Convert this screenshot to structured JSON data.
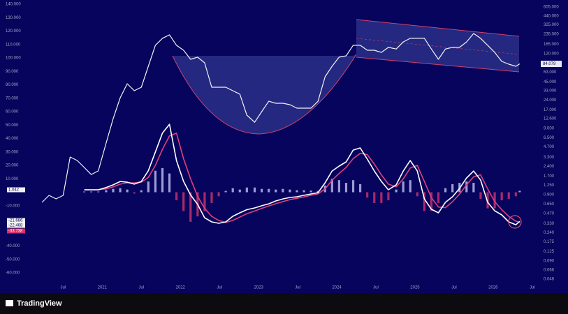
{
  "chart_data": {
    "type": "line",
    "xlim": [
      2020.05,
      2026.6
    ],
    "xticks": [
      {
        "value": 2020.5,
        "label": "Jul"
      },
      2021,
      {
        "value": 2021.5,
        "label": "Jul"
      },
      2022,
      {
        "value": 2022.5,
        "label": "Jul"
      },
      2023,
      {
        "value": 2023.5,
        "label": "Jul"
      },
      2024,
      {
        "value": 2024.5,
        "label": "Jul"
      },
      2025,
      {
        "value": 2025.5,
        "label": "Jul"
      },
      2026,
      {
        "value": 2026.5,
        "label": "Jul"
      }
    ],
    "ylim": [
      -60000,
      140000
    ],
    "yticks": [
      {
        "value": -60000,
        "label": "-60.000"
      },
      {
        "value": -50000,
        "label": "-50.000"
      },
      {
        "value": -40000,
        "label": "-40.000"
      },
      {
        "value": -10000,
        "label": "-10.000"
      },
      {
        "value": 10000,
        "label": "10.000"
      },
      {
        "value": 20000,
        "label": "20.000"
      },
      {
        "value": 30000,
        "label": "30.000"
      },
      {
        "value": 40000,
        "label": "40.000"
      },
      {
        "value": 50000,
        "label": "50.000"
      },
      {
        "value": 60000,
        "label": "60.000"
      },
      {
        "value": 70000,
        "label": "70.000"
      },
      {
        "value": 80000,
        "label": "80.000"
      },
      {
        "value": 90000,
        "label": "90.000"
      },
      {
        "value": 100000,
        "label": "100.000"
      },
      {
        "value": 110000,
        "label": "110.000"
      },
      {
        "value": 120000,
        "label": "120.000"
      },
      {
        "value": 130000,
        "label": "130.000"
      },
      {
        "value": 140000,
        "label": "140.000"
      }
    ],
    "y2lim": [
      0.048,
      605
    ],
    "y2_log": true,
    "y2ticks": [
      {
        "value": 605,
        "label": "605.000"
      },
      {
        "value": 440,
        "label": "440.000"
      },
      {
        "value": 325,
        "label": "325.000"
      },
      {
        "value": 235,
        "label": "235.000"
      },
      {
        "value": 165,
        "label": "165.000"
      },
      {
        "value": 120,
        "label": "120.000"
      },
      {
        "value": 63,
        "label": "63.000"
      },
      {
        "value": 45,
        "label": "45.000"
      },
      {
        "value": 33,
        "label": "33.000"
      },
      {
        "value": 24,
        "label": "24.000"
      },
      {
        "value": 17,
        "label": "17.000"
      },
      {
        "value": 12.6,
        "label": "12.600"
      },
      {
        "value": 9,
        "label": "9.000"
      },
      {
        "value": 6.5,
        "label": "6.500"
      },
      {
        "value": 4.7,
        "label": "4.700"
      },
      {
        "value": 3.3,
        "label": "3.300"
      },
      {
        "value": 2.4,
        "label": "2.400"
      },
      {
        "value": 1.7,
        "label": "1.700"
      },
      {
        "value": 1.25,
        "label": "1.250"
      },
      {
        "value": 0.9,
        "label": "0.900"
      },
      {
        "value": 0.65,
        "label": "0.650"
      },
      {
        "value": 0.47,
        "label": "0.470"
      },
      {
        "value": 0.33,
        "label": "0.330"
      },
      {
        "value": 0.24,
        "label": "0.240"
      },
      {
        "value": 0.175,
        "label": "0.175"
      },
      {
        "value": 0.125,
        "label": "0.125"
      },
      {
        "value": 0.09,
        "label": "0.090"
      },
      {
        "value": 0.066,
        "label": "0.066"
      },
      {
        "value": 0.048,
        "label": "0.048"
      }
    ],
    "x": [
      2020.23,
      2020.32,
      2020.41,
      2020.5,
      2020.59,
      2020.68,
      2020.77,
      2020.86,
      2020.95,
      2021.05,
      2021.14,
      2021.23,
      2021.32,
      2021.41,
      2021.5,
      2021.59,
      2021.68,
      2021.77,
      2021.86,
      2021.95,
      2022.04,
      2022.13,
      2022.22,
      2022.31,
      2022.4,
      2022.49,
      2022.58,
      2022.67,
      2022.76,
      2022.85,
      2022.95,
      2023.04,
      2023.13,
      2023.22,
      2023.31,
      2023.4,
      2023.49,
      2023.58,
      2023.67,
      2023.76,
      2023.85,
      2023.94,
      2024.03,
      2024.12,
      2024.21,
      2024.3,
      2024.39,
      2024.48,
      2024.57,
      2024.66,
      2024.76,
      2024.85,
      2024.94,
      2025.03,
      2025.12,
      2025.21,
      2025.3,
      2025.39,
      2025.48,
      2025.57,
      2025.66,
      2025.75,
      2025.84,
      2025.93,
      2026.02,
      2026.11,
      2026.2,
      2026.29,
      2026.34
    ],
    "series": [
      {
        "type": "bar",
        "color": "#b9b6e6",
        "negative_color": "#c8306c",
        "last_label": "1.042",
        "values": [
          null,
          null,
          null,
          null,
          null,
          null,
          500,
          500,
          500,
          1500,
          2500,
          3000,
          2000,
          -1000,
          1500,
          8000,
          16000,
          18000,
          14000,
          -6000,
          -14000,
          -22000,
          -18000,
          -14000,
          -8000,
          -3000,
          1000,
          3000,
          2000,
          3500,
          3500,
          2500,
          2500,
          2000,
          2500,
          2000,
          1500,
          1500,
          1200,
          1000,
          5000,
          10000,
          9000,
          7000,
          9000,
          6000,
          -4000,
          -8000,
          -8000,
          -6000,
          2000,
          8000,
          9000,
          -3000,
          -14000,
          -14000,
          -8000,
          3000,
          6000,
          7000,
          8000,
          7000,
          -5000,
          -12000,
          -12000,
          -6000,
          -5000,
          -3000,
          1042
        ]
      },
      {
        "type": "line",
        "color": "#e0407a",
        "last_label": "-22.468",
        "values": [
          null,
          null,
          null,
          null,
          null,
          null,
          1800,
          1800,
          1800,
          2500,
          4000,
          6000,
          7000,
          7000,
          7500,
          11000,
          20000,
          32000,
          42000,
          44000,
          25000,
          10000,
          -3000,
          -12000,
          -18000,
          -21000,
          -22500,
          -21000,
          -18500,
          -16000,
          -14000,
          -12000,
          -10300,
          -8500,
          -7000,
          -5500,
          -4500,
          -3500,
          -2300,
          -1200,
          2500,
          9000,
          14000,
          18500,
          25000,
          29000,
          28000,
          21000,
          13000,
          6000,
          4000,
          10000,
          18000,
          20000,
          8000,
          -4000,
          -11000,
          -11500,
          -7000,
          -1500,
          5500,
          11500,
          13000,
          2500,
          -7000,
          -13000,
          -18000,
          -21500,
          -22468
        ]
      },
      {
        "type": "line",
        "color": "#ffffff",
        "last_label": "-21.686",
        "values": [
          null,
          null,
          null,
          null,
          null,
          null,
          1800,
          1800,
          1800,
          3500,
          5500,
          8000,
          7500,
          6000,
          8000,
          16000,
          30000,
          44000,
          50600,
          23600,
          8100,
          -2000,
          -9000,
          -19000,
          -22100,
          -23100,
          -22100,
          -17900,
          -15300,
          -13000,
          -11700,
          -10100,
          -8600,
          -6500,
          -5000,
          -3900,
          -3400,
          -2300,
          -1300,
          -300,
          7000,
          15800,
          19500,
          22600,
          31400,
          33000,
          24700,
          15800,
          8100,
          1800,
          5500,
          15800,
          23600,
          15800,
          -5000,
          -12700,
          -15300,
          -7500,
          -3400,
          2800,
          10600,
          15800,
          9100,
          -7500,
          -13800,
          -16900,
          -22100,
          -24200,
          -21686
        ]
      },
      {
        "type": "line",
        "axis": "y2",
        "color": "#f2f2f2",
        "values": [
          0.689,
          0.877,
          0.776,
          0.877,
          3.32,
          2.94,
          2.31,
          1.81,
          2.05,
          5.39,
          12.6,
          26.0,
          42.2,
          33.1,
          37.4,
          77.3,
          160,
          204,
          230,
          160,
          135,
          98.4,
          106,
          87.2,
          37.4,
          37.4,
          37.4,
          33.1,
          29.4,
          14.2,
          11.1,
          16.0,
          23.0,
          21.4,
          21.4,
          20.4,
          18.1,
          18.1,
          18.1,
          23.0,
          53.7,
          77.3,
          106,
          111,
          160,
          160,
          135,
          135,
          125,
          149,
          141,
          180,
          204,
          204,
          204,
          141,
          98.4,
          141,
          149,
          149,
          180,
          241,
          204,
          160,
          125,
          91.6,
          83.1,
          77.3,
          84.079
        ]
      }
    ],
    "annotations": [
      "-33.738"
    ]
  },
  "branding": "TradingView"
}
